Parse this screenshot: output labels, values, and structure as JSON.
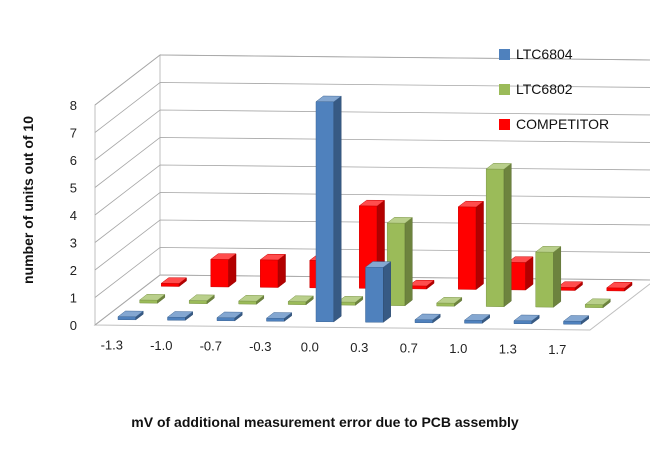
{
  "chart_data": {
    "type": "bar",
    "style": "3d-clustered",
    "categories": [
      "-1.3",
      "-1.0",
      "-0.7",
      "-0.3",
      "0.0",
      "0.3",
      "0.7",
      "1.0",
      "1.3",
      "1.7"
    ],
    "series": [
      {
        "name": "LTC6804",
        "color": "#4F81BD",
        "values": [
          0,
          0,
          0,
          0,
          8,
          2,
          0,
          0,
          0,
          0
        ]
      },
      {
        "name": "LTC6802",
        "color": "#9BBB59",
        "values": [
          0,
          0,
          0,
          0,
          0,
          3,
          0,
          5,
          2,
          0
        ]
      },
      {
        "name": "COMPETITOR",
        "color": "#FF0000",
        "values": [
          0,
          1,
          1,
          1,
          3,
          0,
          3,
          1,
          0,
          0
        ]
      }
    ],
    "xlabel": "mV of additional measurement error due to PCB assembly",
    "ylabel": "number of units out of 10",
    "ylim": [
      0,
      8
    ],
    "yticks": [
      "0",
      "1",
      "2",
      "3",
      "4",
      "5",
      "6",
      "7",
      "8"
    ],
    "grid": true,
    "legend_position": "right"
  }
}
